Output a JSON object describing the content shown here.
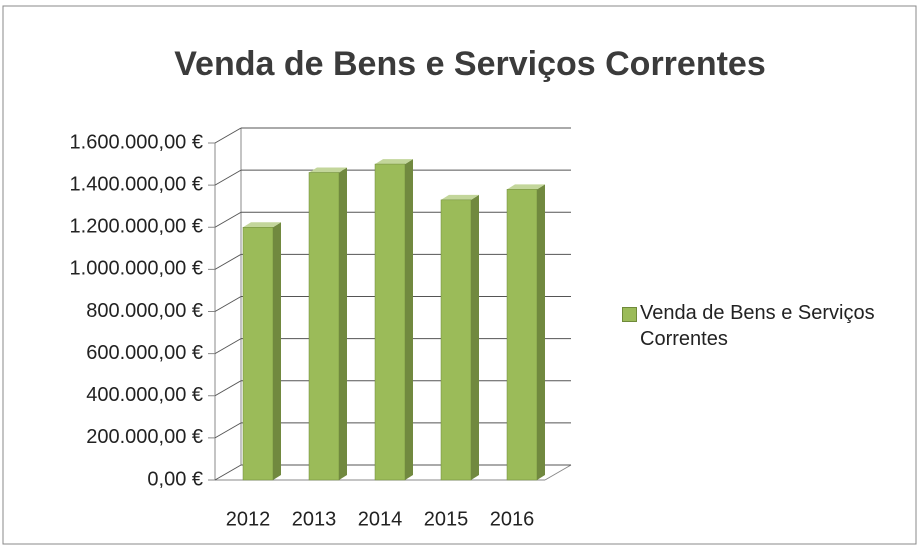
{
  "chart_data": {
    "type": "bar3d",
    "title": "Venda de Bens e Serviços Correntes",
    "categories": [
      "2012",
      "2013",
      "2014",
      "2015",
      "2016"
    ],
    "series": [
      {
        "name": "Venda de Bens e Serviços Correntes",
        "color": "#9bbb59",
        "values": [
          1200000,
          1460000,
          1500000,
          1330000,
          1380000
        ]
      }
    ],
    "ylim": [
      0,
      1600000
    ],
    "yticks": [
      {
        "value": 0,
        "label": "0,00 €"
      },
      {
        "value": 200000,
        "label": "200.000,00 €"
      },
      {
        "value": 400000,
        "label": "400.000,00 €"
      },
      {
        "value": 600000,
        "label": "600.000,00 €"
      },
      {
        "value": 800000,
        "label": "800.000,00 €"
      },
      {
        "value": 1000000,
        "label": "1.000.000,00 €"
      },
      {
        "value": 1200000,
        "label": "1.200.000,00 €"
      },
      {
        "value": 1400000,
        "label": "1.400.000,00 €"
      },
      {
        "value": 1600000,
        "label": "1.600.000,00 €"
      }
    ],
    "grid": true,
    "legend": "right"
  }
}
